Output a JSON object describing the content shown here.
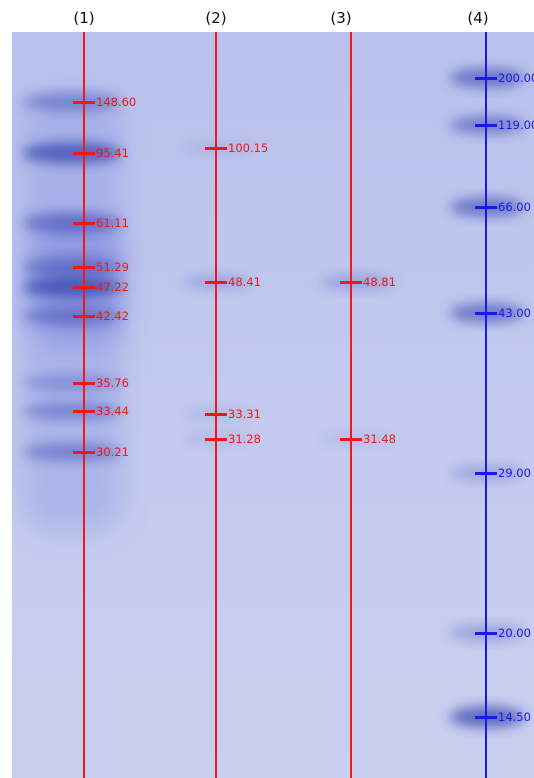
{
  "colors": {
    "red": "#f01818",
    "blue": "#1a1ae0",
    "gel": "#c2c9ee"
  },
  "lanes": [
    {
      "title": "(1)",
      "color": "red",
      "bands": [
        {
          "label": "148.60",
          "intensity": 0.55
        },
        {
          "label": "95.41",
          "intensity": 0.9
        },
        {
          "label": "61.11",
          "intensity": 0.7
        },
        {
          "label": "51.29",
          "intensity": 0.6
        },
        {
          "label": "47.22",
          "intensity": 0.9
        },
        {
          "label": "42.42",
          "intensity": 0.55
        },
        {
          "label": "35.76",
          "intensity": 0.4
        },
        {
          "label": "33.44",
          "intensity": 0.5
        },
        {
          "label": "30.21",
          "intensity": 0.55
        }
      ]
    },
    {
      "title": "(2)",
      "color": "red",
      "bands": [
        {
          "label": "100.15",
          "intensity": 0.15
        },
        {
          "label": "48.41",
          "intensity": 0.3
        },
        {
          "label": "33.31",
          "intensity": 0.15
        },
        {
          "label": "31.28",
          "intensity": 0.15
        }
      ]
    },
    {
      "title": "(3)",
      "color": "red",
      "bands": [
        {
          "label": "48.81",
          "intensity": 0.35
        },
        {
          "label": "31.48",
          "intensity": 0.12
        }
      ]
    },
    {
      "title": "(4)",
      "color": "blue",
      "bands": [
        {
          "label": "200.00",
          "intensity": 0.75
        },
        {
          "label": "119.00",
          "intensity": 0.65
        },
        {
          "label": "66.00",
          "intensity": 0.75
        },
        {
          "label": "43.00",
          "intensity": 0.75
        },
        {
          "label": "29.00",
          "intensity": 0.35
        },
        {
          "label": "20.00",
          "intensity": 0.4
        },
        {
          "label": "14.50",
          "intensity": 0.9
        }
      ]
    }
  ]
}
